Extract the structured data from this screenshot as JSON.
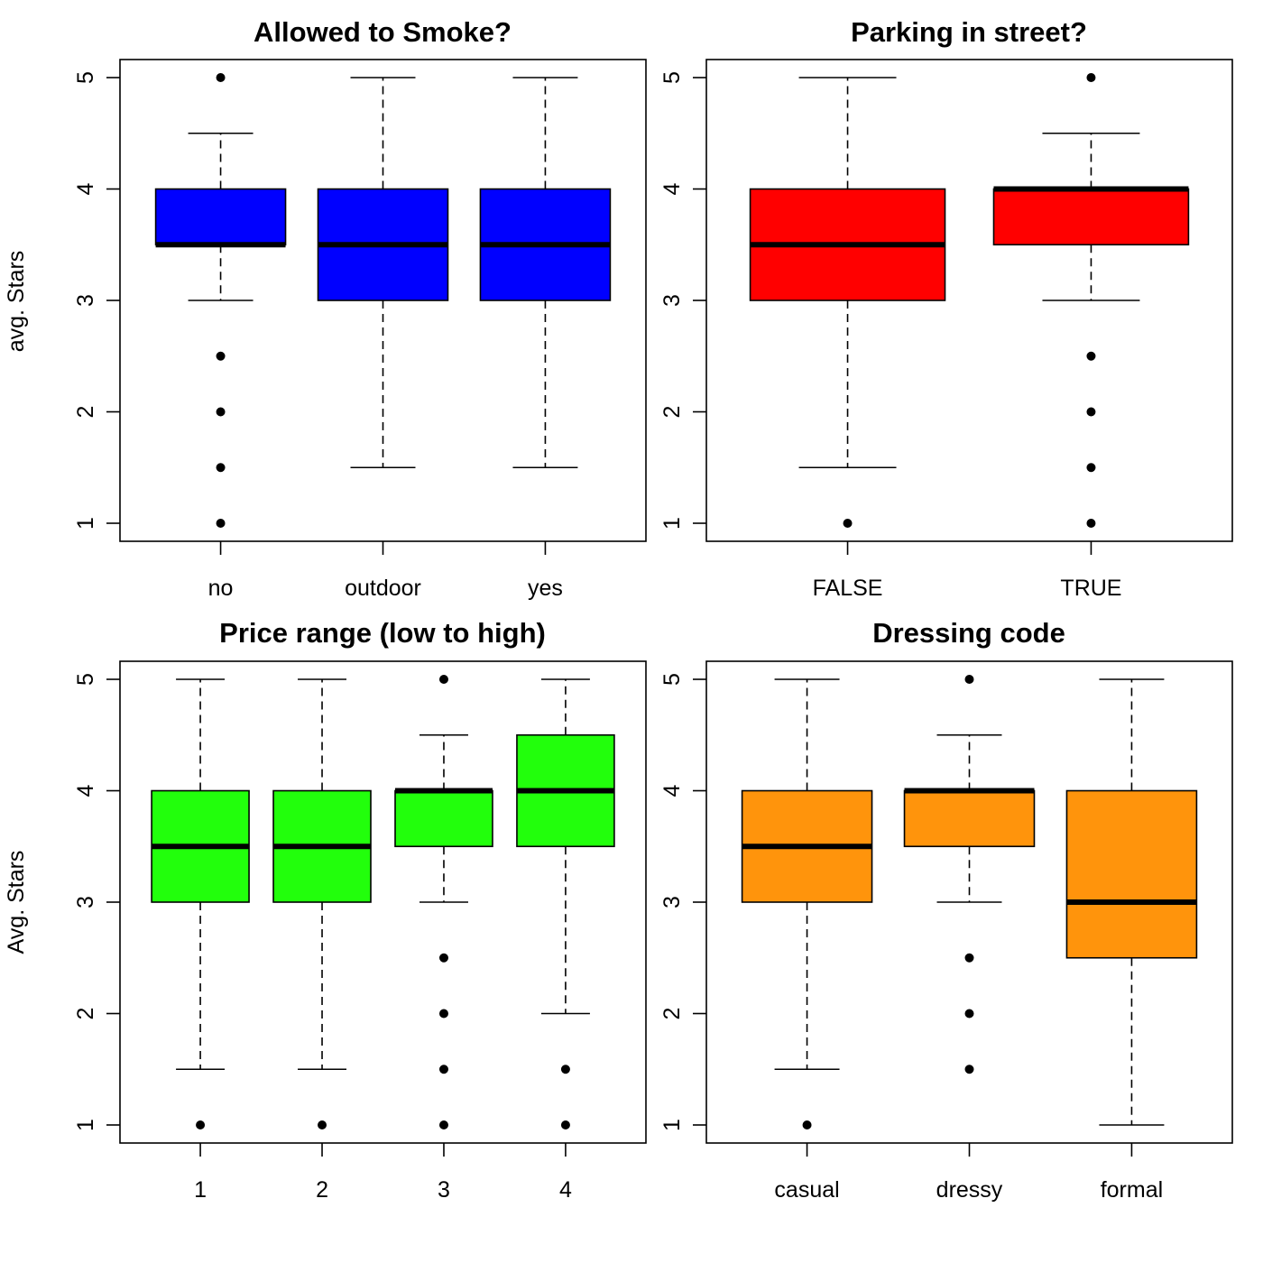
{
  "chart_data": [
    {
      "type": "box",
      "title": "Allowed to Smoke?",
      "ylabel": "avg. Stars",
      "xlabel": "",
      "ylim": [
        1,
        5
      ],
      "yticks": [
        "1",
        "2",
        "3",
        "4",
        "5"
      ],
      "fill_color": "#0000ff",
      "categories": [
        "no",
        "outdoor",
        "yes"
      ],
      "boxes": [
        {
          "min": 3.0,
          "q1": 3.5,
          "median": 3.5,
          "q3": 4.0,
          "max": 4.5,
          "outliers": [
            5,
            2.5,
            2,
            1.5,
            1
          ]
        },
        {
          "min": 1.5,
          "q1": 3.0,
          "median": 3.5,
          "q3": 4.0,
          "max": 5.0,
          "outliers": []
        },
        {
          "min": 1.5,
          "q1": 3.0,
          "median": 3.5,
          "q3": 4.0,
          "max": 5.0,
          "outliers": []
        }
      ]
    },
    {
      "type": "box",
      "title": "Parking in street?",
      "ylabel": "",
      "xlabel": "",
      "ylim": [
        1,
        5
      ],
      "yticks": [
        "1",
        "2",
        "3",
        "4",
        "5"
      ],
      "fill_color": "#ff0000",
      "categories": [
        "FALSE",
        "TRUE"
      ],
      "boxes": [
        {
          "min": 1.5,
          "q1": 3.0,
          "median": 3.5,
          "q3": 4.0,
          "max": 5.0,
          "outliers": [
            1
          ]
        },
        {
          "min": 3.0,
          "q1": 3.5,
          "median": 4.0,
          "q3": 4.0,
          "max": 4.5,
          "outliers": [
            5,
            2.5,
            2,
            1.5,
            1
          ]
        }
      ]
    },
    {
      "type": "box",
      "title": "Price range (low to high)",
      "ylabel": "Avg. Stars",
      "xlabel": "",
      "ylim": [
        1,
        5
      ],
      "yticks": [
        "1",
        "2",
        "3",
        "4",
        "5"
      ],
      "fill_color": "#22ff0c",
      "categories": [
        "1",
        "2",
        "3",
        "4"
      ],
      "boxes": [
        {
          "min": 1.5,
          "q1": 3.0,
          "median": 3.5,
          "q3": 4.0,
          "max": 5.0,
          "outliers": [
            1
          ]
        },
        {
          "min": 1.5,
          "q1": 3.0,
          "median": 3.5,
          "q3": 4.0,
          "max": 5.0,
          "outliers": [
            1
          ]
        },
        {
          "min": 3.0,
          "q1": 3.5,
          "median": 4.0,
          "q3": 4.0,
          "max": 4.5,
          "outliers": [
            5,
            2.5,
            2,
            1.5,
            1
          ]
        },
        {
          "min": 2.0,
          "q1": 3.5,
          "median": 4.0,
          "q3": 4.5,
          "max": 5.0,
          "outliers": [
            1.5,
            1
          ]
        }
      ]
    },
    {
      "type": "box",
      "title": "Dressing code",
      "ylabel": "",
      "xlabel": "",
      "ylim": [
        1,
        5
      ],
      "yticks": [
        "1",
        "2",
        "3",
        "4",
        "5"
      ],
      "fill_color": "#ff940c",
      "categories": [
        "casual",
        "dressy",
        "formal"
      ],
      "boxes": [
        {
          "min": 1.5,
          "q1": 3.0,
          "median": 3.5,
          "q3": 4.0,
          "max": 5.0,
          "outliers": [
            1
          ]
        },
        {
          "min": 3.0,
          "q1": 3.5,
          "median": 4.0,
          "q3": 4.0,
          "max": 4.5,
          "outliers": [
            5,
            2.5,
            2,
            1.5
          ]
        },
        {
          "min": 1.0,
          "q1": 2.5,
          "median": 3.0,
          "q3": 4.0,
          "max": 5.0,
          "outliers": []
        }
      ]
    }
  ]
}
